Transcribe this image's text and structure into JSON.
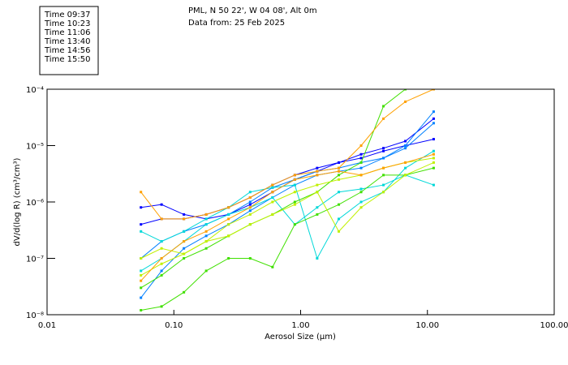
{
  "header": {
    "line1": "PML, N 50 22', W 04 08', Alt 0m",
    "line2": "Data from: 25 Feb 2025"
  },
  "chart_data": {
    "type": "line",
    "xlabel": "Aerosol Size (µm)",
    "ylabel": "dV/d(log R) (cm³/cm³)",
    "xscale": "log",
    "yscale": "log",
    "xlim": [
      0.01,
      100
    ],
    "ylim": [
      1e-08,
      0.0001
    ],
    "xticks": [
      "0.01",
      "0.10",
      "1.00",
      "10.00",
      "100.00"
    ],
    "yticks": [
      {
        "v": 0.0001,
        "label": "10⁻⁴"
      },
      {
        "v": 1e-05,
        "label": "10⁻⁵"
      },
      {
        "v": 1e-06,
        "label": "10⁻⁶"
      },
      {
        "v": 1e-07,
        "label": "10⁻⁷"
      },
      {
        "v": 1e-08,
        "label": "10⁻⁸"
      }
    ],
    "legend_position": "top-left",
    "x": [
      0.055,
      0.08,
      0.12,
      0.18,
      0.27,
      0.4,
      0.6,
      0.9,
      1.35,
      2.0,
      3.0,
      4.5,
      6.7,
      11.2
    ],
    "series": [
      {
        "name": "Time 09:37",
        "color": "#0000ff",
        "lines": [
          [
            8e-07,
            9e-07,
            6e-07,
            5e-07,
            6e-07,
            9e-07,
            1.5e-06,
            2.5e-06,
            3.5e-06,
            5e-06,
            6e-06,
            8e-06,
            1e-05,
            1.3e-05
          ],
          [
            4e-07,
            5e-07,
            5e-07,
            6e-07,
            8e-07,
            1.2e-06,
            2e-06,
            3e-06,
            4e-06,
            5e-06,
            7e-06,
            9e-06,
            1.2e-05,
            3e-05
          ]
        ]
      },
      {
        "name": "Time 10:23",
        "color": "#0080ff",
        "lines": [
          [
            1e-07,
            2e-07,
            3e-07,
            4e-07,
            6e-07,
            1e-06,
            1.8e-06,
            2.5e-06,
            3.5e-06,
            4e-06,
            5e-06,
            6e-06,
            9e-06,
            2.5e-05
          ],
          [
            2e-08,
            6e-08,
            1.5e-07,
            2.5e-07,
            4e-07,
            7e-07,
            1.2e-06,
            2e-06,
            3e-06,
            3.5e-06,
            4e-06,
            6e-06,
            1e-05,
            4e-05
          ]
        ]
      },
      {
        "name": "Time 11:06",
        "color": "#00d8d8",
        "lines": [
          [
            3e-07,
            2e-07,
            3e-07,
            5e-07,
            8e-07,
            1.5e-06,
            1.8e-06,
            2e-06,
            1e-07,
            5e-07,
            1e-06,
            1.5e-06,
            4e-06,
            8e-06
          ],
          [
            6e-08,
            1e-07,
            2e-07,
            4e-07,
            6e-07,
            8e-07,
            1.2e-06,
            4e-07,
            8e-07,
            1.5e-06,
            1.7e-06,
            2e-06,
            3e-06,
            2e-06
          ]
        ]
      },
      {
        "name": "Time 13:40",
        "color": "#40e000",
        "lines": [
          [
            1.2e-08,
            1.4e-08,
            2.5e-08,
            6e-08,
            1e-07,
            1e-07,
            7e-08,
            4e-07,
            6e-07,
            9e-07,
            1.5e-06,
            3e-06,
            3e-06,
            4e-06
          ],
          [
            3e-08,
            5e-08,
            1e-07,
            1.5e-07,
            2.5e-07,
            4e-07,
            6e-07,
            1e-06,
            1.5e-06,
            3e-06,
            5e-06,
            5e-05,
            0.0001,
            0.0001
          ]
        ]
      },
      {
        "name": "Time 14:56",
        "color": "#c0f000",
        "lines": [
          [
            5e-08,
            8e-08,
            1.2e-07,
            2e-07,
            2.5e-07,
            4e-07,
            6e-07,
            9e-07,
            1.5e-06,
            3e-07,
            8e-07,
            1.5e-06,
            3e-06,
            5e-06
          ],
          [
            1e-07,
            1.5e-07,
            1.2e-07,
            2e-07,
            4e-07,
            6e-07,
            1e-06,
            1.5e-06,
            2e-06,
            2.5e-06,
            3e-06,
            4e-06,
            5e-06,
            6e-06
          ]
        ]
      },
      {
        "name": "Time 15:50",
        "color": "#ffa000",
        "lines": [
          [
            1.5e-06,
            5e-07,
            5e-07,
            6e-07,
            8e-07,
            1.2e-06,
            2e-06,
            3e-06,
            3.5e-06,
            4e-06,
            1e-05,
            3e-05,
            6e-05,
            0.0001
          ],
          [
            4e-08,
            1e-07,
            2e-07,
            3e-07,
            5e-07,
            8e-07,
            1.5e-06,
            2.5e-06,
            3e-06,
            3.5e-06,
            3e-06,
            4e-06,
            5e-06,
            7e-06
          ]
        ]
      }
    ]
  }
}
